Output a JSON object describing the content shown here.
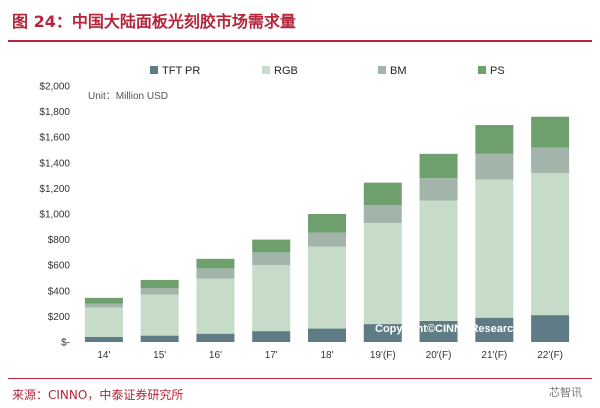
{
  "header": {
    "title": "图 24：中国大陆面板光刻胶市场需求量"
  },
  "footer": {
    "source": "来源：CINNO，中泰证券研究所",
    "watermark": "芯智讯"
  },
  "colors": {
    "accent": "#b5263a",
    "TFT PR": "#5e7b86",
    "RGB": "#c7dcc8",
    "BM": "#a3b5ab",
    "PS": "#6da06d"
  },
  "chart_data": {
    "type": "bar",
    "stacked": true,
    "categories": [
      "14'",
      "15'",
      "16'",
      "17'",
      "18'",
      "19'(F)",
      "20'(F)",
      "21'(F)",
      "22'(F)"
    ],
    "series": [
      {
        "name": "TFT PR",
        "values": [
          40,
          50,
          65,
          85,
          105,
          140,
          165,
          190,
          210
        ]
      },
      {
        "name": "RGB",
        "values": [
          230,
          320,
          430,
          515,
          640,
          790,
          940,
          1080,
          1110
        ]
      },
      {
        "name": "BM",
        "values": [
          30,
          50,
          80,
          100,
          110,
          140,
          175,
          200,
          200
        ]
      },
      {
        "name": "PS",
        "values": [
          45,
          65,
          75,
          100,
          145,
          175,
          190,
          225,
          240
        ]
      }
    ],
    "ylim": [
      0,
      2000
    ],
    "ytick_labels": [
      "$-",
      "$200",
      "$400",
      "$600",
      "$800",
      "$1,000",
      "$1,200",
      "$1,400",
      "$1,600",
      "$1,800",
      "$2,000"
    ],
    "unit_label": "Unit：Million USD",
    "legend_position": "top",
    "annotation": "Copyright©CINNOResearch",
    "grid": false
  }
}
